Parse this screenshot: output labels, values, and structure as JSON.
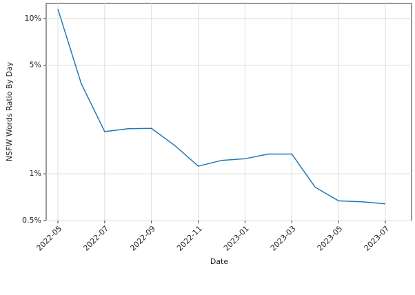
{
  "chart_data": {
    "type": "line",
    "x_label": "Date",
    "y_label": "NSFW Words Ratio By Day",
    "x": [
      "2022-05",
      "2022-06",
      "2022-07",
      "2022-08",
      "2022-09",
      "2022-10",
      "2022-11",
      "2022-12",
      "2023-01",
      "2023-02",
      "2023-03",
      "2023-04",
      "2023-05",
      "2023-06",
      "2023-07"
    ],
    "series": [
      {
        "name": "NSFW Words Ratio",
        "color": "#1f77b4",
        "values": [
          11.5,
          3.8,
          1.87,
          1.95,
          1.96,
          1.52,
          1.12,
          1.22,
          1.25,
          1.34,
          1.34,
          0.82,
          0.67,
          0.66,
          0.64
        ]
      }
    ],
    "xticks": [
      "2022-05",
      "2022-07",
      "2022-09",
      "2022-11",
      "2023-01",
      "2023-03",
      "2023-05",
      "2023-07"
    ],
    "ylim": [
      0.5,
      12.5
    ],
    "yticks": [
      {
        "value": 0.5,
        "label": "0.5%"
      },
      {
        "value": 1,
        "label": "1%"
      },
      {
        "value": 5,
        "label": "5%"
      },
      {
        "value": 10,
        "label": "10%"
      }
    ],
    "log_scale_y": true,
    "grid": true
  }
}
